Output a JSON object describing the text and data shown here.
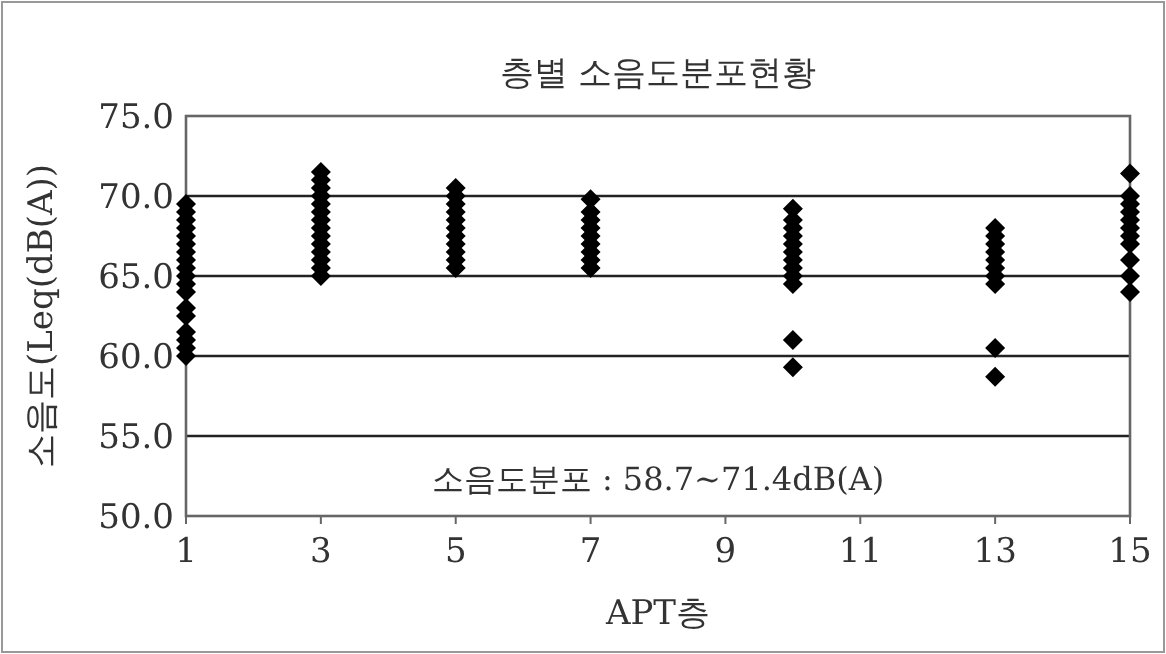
{
  "chart_data": {
    "type": "scatter",
    "title": "층별 소음도분포현황",
    "xlabel": "APT층",
    "ylabel": "소음도(Leq(dB(A))",
    "annotations": [
      "소음도분포 : 58.7~71.4dB(A)"
    ],
    "series": [
      {
        "color": "#000000",
        "x": [
          1,
          1,
          1,
          1,
          1,
          1,
          1,
          1,
          1,
          1,
          1,
          1,
          1,
          1,
          1,
          1,
          1,
          1,
          3,
          3,
          3,
          3,
          3,
          3,
          3,
          3,
          3,
          3,
          3,
          3,
          3,
          3,
          5,
          5,
          5,
          5,
          5,
          5,
          5,
          5,
          5,
          5,
          5,
          7,
          7,
          7,
          7,
          7,
          7,
          7,
          7,
          7,
          10,
          10,
          10,
          10,
          10,
          10,
          10,
          10,
          10,
          10,
          10,
          10,
          13,
          13,
          13,
          13,
          13,
          13,
          13,
          13,
          13,
          13,
          15,
          15,
          15,
          15,
          15,
          15,
          15,
          15,
          15,
          15,
          15
        ],
        "values": [
          69.5,
          69,
          68.5,
          68,
          67.5,
          67,
          66.5,
          66,
          65.5,
          65,
          64.5,
          64,
          63,
          62.5,
          61.5,
          61,
          60.5,
          60,
          71.5,
          71,
          70.5,
          70,
          69.5,
          69,
          68.5,
          68,
          67.5,
          67,
          66.5,
          66,
          65.5,
          65,
          70.5,
          70,
          69.5,
          69,
          68.5,
          68,
          67.5,
          67,
          66.5,
          66,
          65.5,
          69.8,
          69,
          68.5,
          68,
          67.5,
          67,
          66.5,
          66,
          65.5,
          69.2,
          68.5,
          68,
          67.5,
          67,
          66.5,
          66,
          65.5,
          65,
          64.5,
          61,
          59.3,
          68,
          67.5,
          67,
          66.5,
          66,
          65.5,
          65,
          64.5,
          60.5,
          58.7,
          71.4,
          70,
          69.5,
          69,
          68.5,
          68,
          67.5,
          67,
          66,
          65,
          64
        ]
      }
    ],
    "xlim": [
      1,
      15
    ],
    "xticks": [
      1,
      3,
      5,
      7,
      9,
      11,
      13,
      15
    ],
    "ylim": [
      50,
      75
    ],
    "yticks": [
      {
        "value": 50,
        "label": "50.0"
      },
      {
        "value": 55,
        "label": "55.0"
      },
      {
        "value": 60,
        "label": "60.0"
      },
      {
        "value": 65,
        "label": "65.0"
      },
      {
        "value": 70,
        "label": "70.0"
      },
      {
        "value": 75,
        "label": "75.0"
      }
    ],
    "grid": "y",
    "marker": "diamond"
  }
}
